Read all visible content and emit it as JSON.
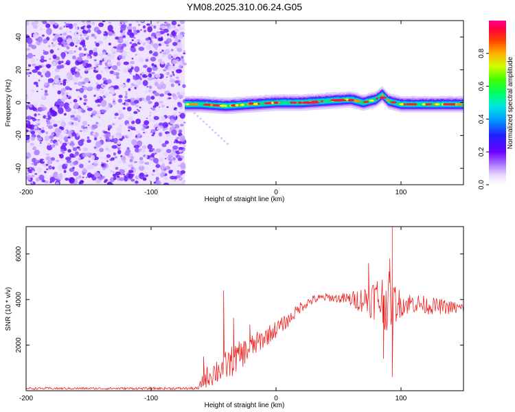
{
  "figure": {
    "title": "YM08.2025.310.06.24.G05"
  },
  "chart_data": [
    {
      "type": "heatmap",
      "title": "YM08.2025.310.06.24.G05",
      "xlabel": "Height of straight line (km)",
      "ylabel": "Frequency (Hz)",
      "xlim": [
        -200,
        150
      ],
      "ylim": [
        -50,
        50
      ],
      "xticks": [
        -200,
        -100,
        0,
        100
      ],
      "yticks": [
        -40,
        -20,
        0,
        20,
        40
      ],
      "noise_region_x": [
        -200,
        -73
      ],
      "signal_start_x": -73,
      "frequency_track": {
        "x": [
          -73,
          -60,
          -40,
          -20,
          0,
          20,
          40,
          60,
          70,
          80,
          85,
          90,
          100,
          110,
          130,
          150
        ],
        "freq": [
          -1,
          -1,
          -2,
          -1,
          0,
          0,
          1,
          2,
          0,
          2,
          5,
          1,
          -1,
          -1,
          -1,
          -1
        ]
      },
      "colorbar": {
        "label": "Normalized spectral amplitude",
        "ticks": [
          "0.0",
          "0.2",
          "0.4",
          "0.6",
          "0.8"
        ],
        "range": [
          0,
          1
        ]
      }
    },
    {
      "type": "line",
      "xlabel": "Height of straight line (km)",
      "ylabel": "SNR (10 * v/v)",
      "xlim": [
        -200,
        150
      ],
      "ylim": [
        0,
        7200
      ],
      "xticks": [
        -200,
        -100,
        0,
        100
      ],
      "yticks": [
        2000,
        4000,
        6000
      ],
      "series": [
        {
          "name": "SNR",
          "color": "#ee2222",
          "envelope": {
            "x": [
              -200,
              -150,
              -100,
              -62,
              -58,
              -50,
              -40,
              -30,
              -20,
              -10,
              0,
              10,
              20,
              30,
              40,
              50,
              60,
              70,
              80,
              90,
              100,
              110,
              120,
              130,
              140,
              150
            ],
            "mean": [
              100,
              100,
              100,
              100,
              500,
              800,
              1100,
              1500,
              1900,
              2300,
              2700,
              3100,
              3700,
              4000,
              4100,
              4050,
              4000,
              4000,
              4050,
              3900,
              3800,
              3850,
              3750,
              3700,
              3650,
              3600
            ],
            "spread": [
              50,
              50,
              50,
              60,
              400,
              600,
              700,
              650,
              550,
              450,
              380,
              300,
              250,
              200,
              180,
              200,
              350,
              600,
              1000,
              1400,
              550,
              450,
              400,
              350,
              300,
              280
            ]
          },
          "spikes": [
            {
              "x": -42,
              "y": 4400
            },
            {
              "x": -58,
              "y": 1500
            },
            {
              "x": -34,
              "y": 3200
            },
            {
              "x": -21,
              "y": 2900
            },
            {
              "x": 93,
              "y": 7200
            },
            {
              "x": 93,
              "y": 600
            },
            {
              "x": 91,
              "y": 5800
            },
            {
              "x": 86,
              "y": 1400
            },
            {
              "x": 74,
              "y": 5600
            }
          ]
        }
      ]
    }
  ]
}
